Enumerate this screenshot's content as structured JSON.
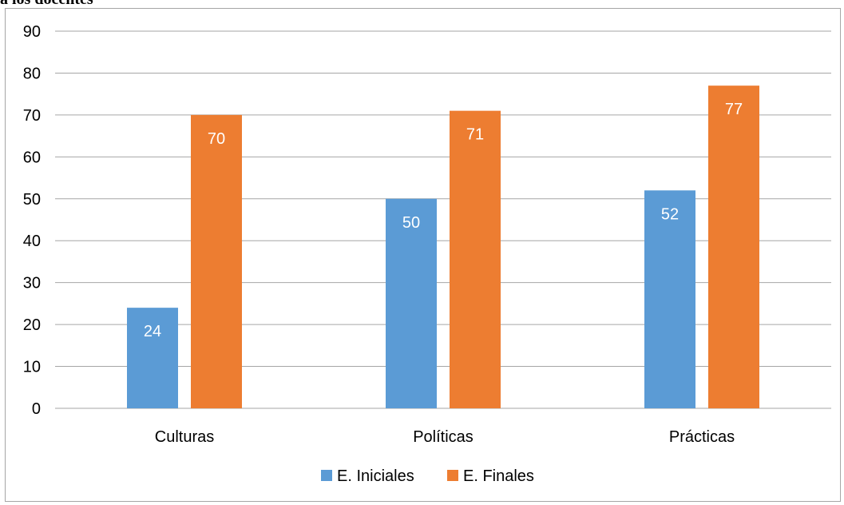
{
  "document": {
    "title_fragment": "a los docentes"
  },
  "chart_data": {
    "type": "bar",
    "categories": [
      "Culturas",
      "Políticas",
      "Prácticas"
    ],
    "series": [
      {
        "name": "E. Iniciales",
        "values": [
          24,
          50,
          52
        ],
        "color": "#5b9bd5"
      },
      {
        "name": "E. Finales",
        "values": [
          70,
          71,
          77
        ],
        "color": "#ed7d31"
      }
    ],
    "ylim": [
      0,
      90
    ],
    "yticks": [
      0,
      10,
      20,
      30,
      40,
      50,
      60,
      70,
      80,
      90
    ],
    "grid": true,
    "data_labels": true,
    "legend_position": "bottom",
    "title": "",
    "xlabel": "",
    "ylabel": ""
  }
}
